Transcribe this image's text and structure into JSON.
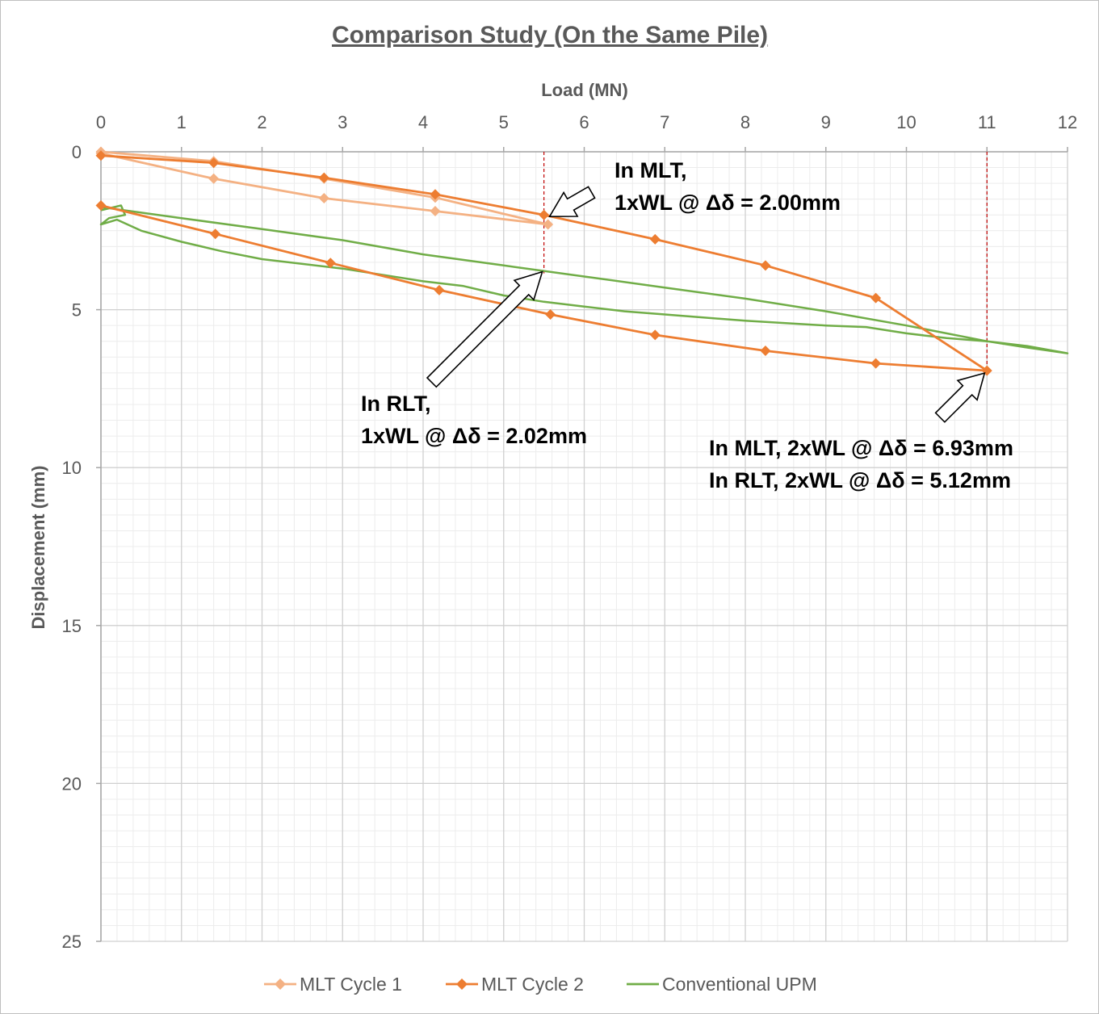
{
  "chart_data": {
    "type": "scatter",
    "title": "Comparison Study (On the Same Pile)",
    "xlabel": "Load (MN)",
    "ylabel": "Displacement (mm)",
    "xlim": [
      0,
      12
    ],
    "ylim": [
      0,
      25
    ],
    "y_inverted": true,
    "x_axis_position": "top",
    "x_ticks": [
      "0",
      "1",
      "2",
      "3",
      "4",
      "5",
      "6",
      "7",
      "8",
      "9",
      "10",
      "11",
      "12"
    ],
    "y_ticks": [
      "0",
      "5",
      "10",
      "15",
      "20",
      "25"
    ],
    "grid": true,
    "legend": "bottom",
    "series": [
      {
        "name": "MLT Cycle 1",
        "color": "#F4B183",
        "marker": "diamond",
        "points": [
          [
            0.0,
            0.0
          ],
          [
            1.4,
            0.3
          ],
          [
            2.77,
            0.85
          ],
          [
            4.15,
            1.45
          ],
          [
            5.55,
            2.3
          ],
          [
            4.15,
            1.88
          ],
          [
            2.77,
            1.47
          ],
          [
            1.4,
            0.85
          ],
          [
            0.0,
            0.05
          ]
        ]
      },
      {
        "name": "MLT Cycle 2",
        "color": "#ED7D31",
        "marker": "diamond",
        "points": [
          [
            0.0,
            0.12
          ],
          [
            1.4,
            0.35
          ],
          [
            2.77,
            0.82
          ],
          [
            4.15,
            1.35
          ],
          [
            5.5,
            2.0
          ],
          [
            6.88,
            2.77
          ],
          [
            8.25,
            3.6
          ],
          [
            9.62,
            4.63
          ],
          [
            11.0,
            6.93
          ],
          [
            9.62,
            6.7
          ],
          [
            8.25,
            6.3
          ],
          [
            6.88,
            5.8
          ],
          [
            5.58,
            5.15
          ],
          [
            4.2,
            4.38
          ],
          [
            2.85,
            3.52
          ],
          [
            1.42,
            2.6
          ],
          [
            0.0,
            1.7
          ]
        ]
      },
      {
        "name": "Conventional UPM",
        "color": "#70AD47",
        "marker": "none",
        "points": [
          [
            0.0,
            1.85
          ],
          [
            0.25,
            1.7
          ],
          [
            0.3,
            2.0
          ],
          [
            0.1,
            2.1
          ],
          [
            0.0,
            2.3
          ],
          [
            0.2,
            2.15
          ],
          [
            0.5,
            2.5
          ],
          [
            1.0,
            2.85
          ],
          [
            1.5,
            3.15
          ],
          [
            2.0,
            3.4
          ],
          [
            3.0,
            3.7
          ],
          [
            4.0,
            4.1
          ],
          [
            4.5,
            4.25
          ],
          [
            5.0,
            4.55
          ],
          [
            5.5,
            4.75
          ],
          [
            6.0,
            4.9
          ],
          [
            6.5,
            5.05
          ],
          [
            7.0,
            5.15
          ],
          [
            8.0,
            5.35
          ],
          [
            9.0,
            5.5
          ],
          [
            9.5,
            5.55
          ],
          [
            10.0,
            5.75
          ],
          [
            10.5,
            5.9
          ],
          [
            11.0,
            6.0
          ],
          [
            11.5,
            6.15
          ],
          [
            12.0,
            6.38
          ],
          [
            11.5,
            6.2
          ],
          [
            11.0,
            6.0
          ],
          [
            10.0,
            5.5
          ],
          [
            9.0,
            5.05
          ],
          [
            8.0,
            4.65
          ],
          [
            7.0,
            4.3
          ],
          [
            6.0,
            3.95
          ],
          [
            5.0,
            3.6
          ],
          [
            4.0,
            3.25
          ],
          [
            3.0,
            2.8
          ],
          [
            2.0,
            2.45
          ],
          [
            1.0,
            2.1
          ],
          [
            0.0,
            1.75
          ]
        ]
      }
    ],
    "reference_lines": [
      {
        "x": 5.5,
        "y_from": 0,
        "y_to": 3.85,
        "color": "#C00000",
        "style": "dashed"
      },
      {
        "x": 11.0,
        "y_from": 0,
        "y_to": 6.93,
        "color": "#C00000",
        "style": "dashed"
      }
    ],
    "annotations": [
      {
        "lines": [
          "In MLT,",
          "1xWL @ Δδ = 2.00mm"
        ],
        "points_to": [
          5.5,
          2.0
        ]
      },
      {
        "lines": [
          "In RLT,",
          "1xWL @ Δδ = 2.02mm"
        ],
        "points_to": [
          5.5,
          3.85
        ]
      },
      {
        "lines": [
          "In MLT, 2xWL @ Δδ = 6.93mm",
          "In RLT, 2xWL @ Δδ = 5.12mm"
        ],
        "points_to": [
          11.0,
          6.93
        ]
      }
    ]
  }
}
